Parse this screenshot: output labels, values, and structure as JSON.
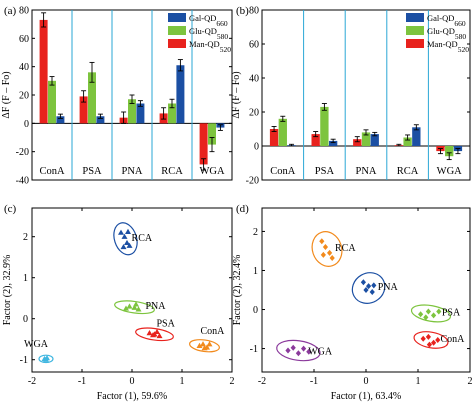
{
  "chart_data": [
    {
      "panel": "(a)",
      "type": "bar",
      "ylabel": "ΔF (F – Fo)",
      "ylim": [
        -40,
        80
      ],
      "yticks": [
        -40,
        -20,
        0,
        20,
        40,
        60,
        80
      ],
      "categories": [
        "ConA",
        "PSA",
        "PNA",
        "RCA",
        "WGA"
      ],
      "legend_position": "top-right",
      "series": [
        {
          "name": "Man-QD520",
          "color": "#e8221d",
          "values": [
            73,
            19,
            4,
            7,
            -29
          ],
          "errors": [
            5,
            4,
            4,
            4,
            4
          ]
        },
        {
          "name": "Glu-QD580",
          "color": "#7dc43e",
          "values": [
            30,
            36,
            17,
            14,
            -15
          ],
          "errors": [
            3,
            7,
            3,
            3,
            5
          ]
        },
        {
          "name": "Gal-QD660",
          "color": "#1b4fa3",
          "values": [
            5,
            5,
            14,
            41,
            -3
          ],
          "errors": [
            1.5,
            1.5,
            2,
            4,
            2
          ]
        }
      ]
    },
    {
      "panel": "(b)",
      "type": "bar",
      "ylabel": "ΔF (F – Fo)",
      "ylim": [
        -20,
        80
      ],
      "yticks": [
        -20,
        0,
        20,
        40,
        60,
        80
      ],
      "categories": [
        "ConA",
        "PSA",
        "PNA",
        "RCA",
        "WGA"
      ],
      "legend_position": "top-right",
      "series": [
        {
          "name": "Man-QD520",
          "color": "#e8221d",
          "values": [
            10,
            7,
            4,
            0.5,
            -3
          ],
          "errors": [
            1.5,
            1.5,
            1.5,
            0.5,
            1.5
          ]
        },
        {
          "name": "Glu-QD580",
          "color": "#7dc43e",
          "values": [
            16,
            23,
            8,
            5,
            -6
          ],
          "errors": [
            1.5,
            2,
            1.5,
            1.5,
            2
          ]
        },
        {
          "name": "Gal-QD660",
          "color": "#1b4fa3",
          "values": [
            0.5,
            3,
            7,
            11,
            -3
          ],
          "errors": [
            0.5,
            1,
            1,
            1.5,
            1.5
          ]
        }
      ]
    },
    {
      "panel": "(c)",
      "type": "scatter",
      "xlabel": "Factor (1), 59.6%",
      "ylabel": "Factor (2), 32.9%",
      "xlim": [
        -2,
        2
      ],
      "ylim": [
        -1.3,
        2.7
      ],
      "xticks": [
        -2,
        -1,
        0,
        1,
        2
      ],
      "yticks": [
        -1,
        0,
        1,
        2
      ],
      "groups": [
        {
          "label": "RCA",
          "color": "#1b4fa3",
          "marker": "triangle",
          "ellipse": {
            "cx": -0.13,
            "cy": 1.95,
            "rx": 0.22,
            "ry": 0.4,
            "rot": 18
          },
          "points": [
            [
              -0.22,
              2.1
            ],
            [
              -0.15,
              2.0
            ],
            [
              -0.1,
              1.85
            ],
            [
              -0.05,
              1.78
            ],
            [
              -0.17,
              1.75
            ],
            [
              -0.08,
              2.12
            ]
          ]
        },
        {
          "label": "PNA",
          "color": "#7dc43e",
          "marker": "triangle",
          "ellipse": {
            "cx": 0.05,
            "cy": 0.28,
            "rx": 0.4,
            "ry": 0.14,
            "rot": -8
          },
          "points": [
            [
              -0.05,
              0.3
            ],
            [
              0.05,
              0.27
            ],
            [
              0.13,
              0.23
            ],
            [
              -0.12,
              0.25
            ],
            [
              0.08,
              0.35
            ]
          ]
        },
        {
          "label": "PSA",
          "color": "#e8221d",
          "marker": "triangle",
          "ellipse": {
            "cx": 0.45,
            "cy": -0.38,
            "rx": 0.38,
            "ry": 0.14,
            "rot": -8
          },
          "points": [
            [
              0.35,
              -0.35
            ],
            [
              0.42,
              -0.4
            ],
            [
              0.5,
              -0.32
            ],
            [
              0.55,
              -0.42
            ],
            [
              0.45,
              -0.38
            ]
          ]
        },
        {
          "label": "ConA",
          "color": "#f28a1c",
          "marker": "triangle",
          "ellipse": {
            "cx": 1.45,
            "cy": -0.66,
            "rx": 0.3,
            "ry": 0.14,
            "rot": -8
          },
          "points": [
            [
              1.35,
              -0.66
            ],
            [
              1.42,
              -0.62
            ],
            [
              1.5,
              -0.7
            ],
            [
              1.55,
              -0.62
            ],
            [
              1.45,
              -0.72
            ]
          ]
        },
        {
          "label": "WGA",
          "color": "#3fb6e0",
          "marker": "triangle",
          "ellipse": {
            "cx": -1.72,
            "cy": -0.98,
            "rx": 0.14,
            "ry": 0.09,
            "rot": 0
          },
          "points": [
            [
              -1.75,
              -0.98
            ],
            [
              -1.7,
              -0.96
            ],
            [
              -1.72,
              -1.0
            ]
          ]
        }
      ]
    },
    {
      "panel": "(d)",
      "type": "scatter",
      "xlabel": "Factor (1), 63.4%",
      "ylabel": "Factor (2), 32.4%",
      "xlim": [
        -2,
        2
      ],
      "ylim": [
        -1.6,
        2.6
      ],
      "xticks": [
        -2,
        -1,
        0,
        1,
        2
      ],
      "yticks": [
        -1,
        0,
        1,
        2
      ],
      "groups": [
        {
          "label": "RCA",
          "color": "#f28a1c",
          "marker": "diamond",
          "ellipse": {
            "cx": -0.75,
            "cy": 1.55,
            "rx": 0.28,
            "ry": 0.45,
            "rot": 18
          },
          "points": [
            [
              -0.85,
              1.75
            ],
            [
              -0.78,
              1.6
            ],
            [
              -0.7,
              1.45
            ],
            [
              -0.65,
              1.32
            ],
            [
              -0.82,
              1.4
            ]
          ]
        },
        {
          "label": "PNA",
          "color": "#1b4fa3",
          "marker": "diamond",
          "ellipse": {
            "cx": 0.05,
            "cy": 0.55,
            "rx": 0.32,
            "ry": 0.38,
            "rot": 30
          },
          "points": [
            [
              -0.05,
              0.7
            ],
            [
              0.05,
              0.6
            ],
            [
              0.12,
              0.45
            ],
            [
              0.0,
              0.5
            ],
            [
              0.15,
              0.62
            ]
          ]
        },
        {
          "label": "PSA",
          "color": "#7dc43e",
          "marker": "diamond",
          "ellipse": {
            "cx": 1.25,
            "cy": -0.1,
            "rx": 0.38,
            "ry": 0.2,
            "rot": -10
          },
          "points": [
            [
              1.05,
              -0.12
            ],
            [
              1.2,
              -0.05
            ],
            [
              1.3,
              -0.15
            ],
            [
              1.4,
              -0.05
            ],
            [
              1.15,
              -0.2
            ]
          ]
        },
        {
          "label": "ConA",
          "color": "#e8221d",
          "marker": "diamond",
          "ellipse": {
            "cx": 1.25,
            "cy": -0.78,
            "rx": 0.33,
            "ry": 0.2,
            "rot": -10
          },
          "points": [
            [
              1.1,
              -0.75
            ],
            [
              1.2,
              -0.7
            ],
            [
              1.3,
              -0.85
            ],
            [
              1.38,
              -0.78
            ],
            [
              1.22,
              -0.9
            ]
          ]
        },
        {
          "label": "WGA",
          "color": "#8b3a9c",
          "marker": "diamond",
          "ellipse": {
            "cx": -1.3,
            "cy": -1.05,
            "rx": 0.42,
            "ry": 0.25,
            "rot": -8
          },
          "points": [
            [
              -1.5,
              -1.05
            ],
            [
              -1.4,
              -0.98
            ],
            [
              -1.3,
              -1.12
            ],
            [
              -1.2,
              -1.0
            ],
            [
              -1.1,
              -1.08
            ]
          ]
        }
      ]
    }
  ]
}
